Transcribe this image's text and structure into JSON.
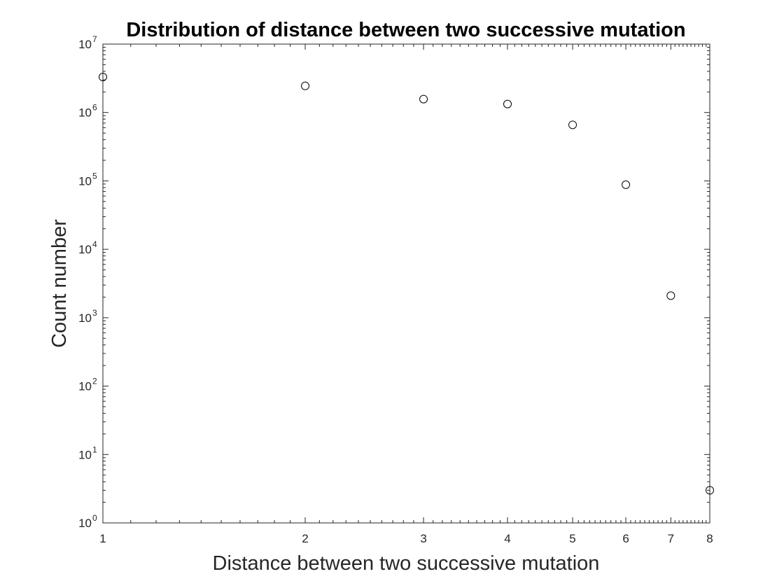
{
  "chart_data": {
    "type": "scatter",
    "title": "Distribution of distance between two successive mutation",
    "xlabel": "Distance between two successive mutation",
    "ylabel": "Count number",
    "xscale": "log",
    "yscale": "log",
    "xlim": [
      1,
      8
    ],
    "ylim": [
      1,
      10000000
    ],
    "x_ticks": [
      "1",
      "2",
      "3",
      "4",
      "5",
      "6",
      "7",
      "8"
    ],
    "y_ticks": [
      {
        "base": "10",
        "exp": "0"
      },
      {
        "base": "10",
        "exp": "1"
      },
      {
        "base": "10",
        "exp": "2"
      },
      {
        "base": "10",
        "exp": "3"
      },
      {
        "base": "10",
        "exp": "4"
      },
      {
        "base": "10",
        "exp": "5"
      },
      {
        "base": "10",
        "exp": "6"
      },
      {
        "base": "10",
        "exp": "7"
      }
    ],
    "marker": "open-circle",
    "grid": false,
    "x": [
      1,
      2,
      3,
      4,
      5,
      6,
      7,
      8
    ],
    "y": [
      3300000,
      2450000,
      1570000,
      1330000,
      660000,
      88000,
      2100,
      3
    ]
  }
}
